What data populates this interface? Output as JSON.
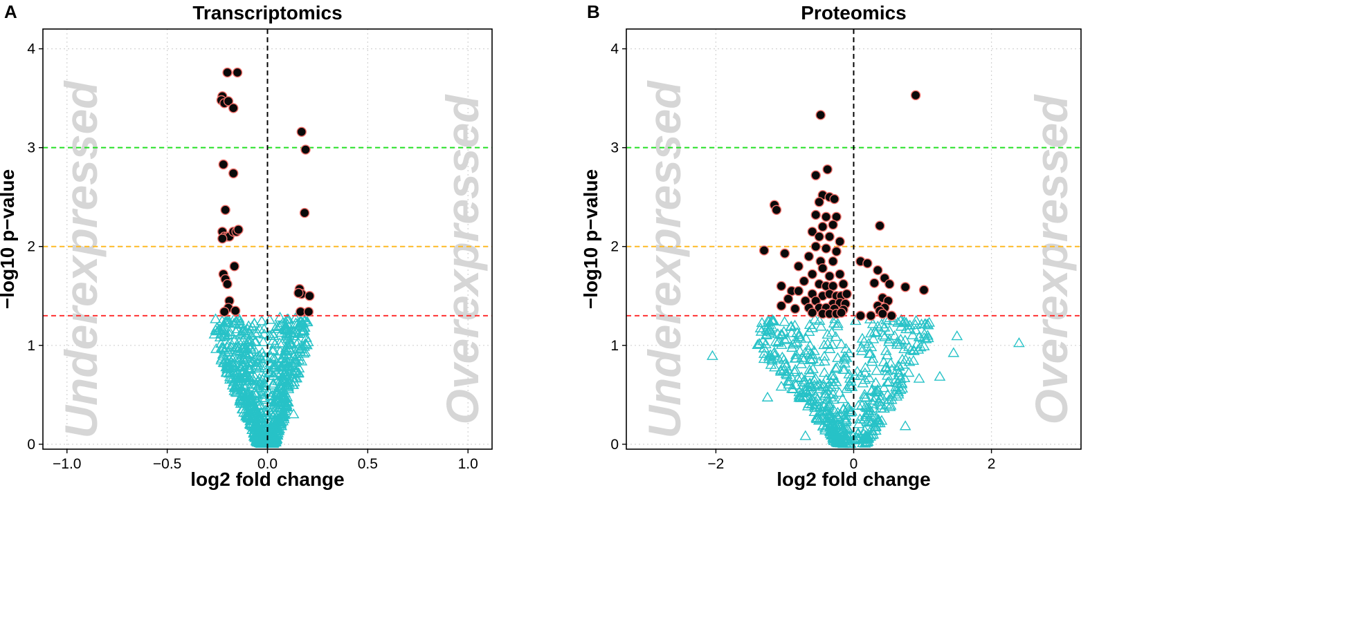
{
  "colors": {
    "significant_fill": "#0a0a0a",
    "significant_stroke": "#f2706a",
    "nonsignificant_stroke": "#27c2c7",
    "line_red": "#ff3030",
    "line_orange": "#ffba22",
    "line_green": "#22e022",
    "grid": "#d3d3d3"
  },
  "chart_data": [
    {
      "panel_label": "A",
      "type": "scatter",
      "title": "Transcriptomics",
      "xlabel": "log2 fold change",
      "ylabel": "−log10 p−value",
      "xlim": [
        -1.12,
        1.12
      ],
      "ylim": [
        -0.05,
        4.2
      ],
      "xticks": [
        -1.0,
        -0.5,
        0.0,
        0.5,
        1.0
      ],
      "xtick_labels": [
        "−1.0",
        "−0.5",
        "0.0",
        "0.5",
        "1.0"
      ],
      "yticks": [
        0,
        1,
        2,
        3,
        4
      ],
      "ytick_labels": [
        "0",
        "1",
        "2",
        "3",
        "4"
      ],
      "grid": true,
      "annotations": {
        "left": "Underexpressed",
        "right": "Overexpressed"
      },
      "thresholds": [
        {
          "y": 1.3,
          "color": "red"
        },
        {
          "y": 2.0,
          "color": "orange"
        },
        {
          "y": 3.0,
          "color": "green"
        }
      ],
      "vline_x": 0,
      "significant": [
        [
          -0.2,
          3.76
        ],
        [
          -0.15,
          3.76
        ],
        [
          -0.225,
          3.52
        ],
        [
          -0.23,
          3.48
        ],
        [
          -0.215,
          3.45
        ],
        [
          -0.195,
          3.47
        ],
        [
          -0.17,
          3.4
        ],
        [
          -0.22,
          2.83
        ],
        [
          -0.17,
          2.74
        ],
        [
          -0.21,
          2.37
        ],
        [
          -0.225,
          2.15
        ],
        [
          -0.215,
          2.1
        ],
        [
          -0.2,
          2.1
        ],
        [
          -0.19,
          2.1
        ],
        [
          -0.17,
          2.15
        ],
        [
          -0.155,
          2.15
        ],
        [
          -0.145,
          2.17
        ],
        [
          -0.225,
          2.08
        ],
        [
          -0.165,
          1.8
        ],
        [
          -0.22,
          1.72
        ],
        [
          -0.21,
          1.67
        ],
        [
          -0.2,
          1.62
        ],
        [
          -0.19,
          1.45
        ],
        [
          -0.195,
          1.38
        ],
        [
          -0.215,
          1.34
        ],
        [
          -0.16,
          1.35
        ],
        [
          0.17,
          3.16
        ],
        [
          0.19,
          2.98
        ],
        [
          0.185,
          2.34
        ],
        [
          0.16,
          1.57
        ],
        [
          0.17,
          1.52
        ],
        [
          0.155,
          1.53
        ],
        [
          0.21,
          1.5
        ],
        [
          0.165,
          1.34
        ],
        [
          0.205,
          1.34
        ]
      ],
      "nonsignificant_left": {
        "count": 420,
        "x_range": [
          -0.26,
          -0.01
        ]
      },
      "nonsignificant_right": {
        "count": 360,
        "x_range": [
          0.01,
          0.2
        ]
      },
      "nonsignificant_extra": [
        [
          -0.12,
          1.05
        ],
        [
          -0.1,
          1.0
        ],
        [
          -0.11,
          0.92
        ],
        [
          -0.13,
          0.9
        ],
        [
          -0.1,
          0.6
        ],
        [
          0.1,
          0.42
        ],
        [
          0.13,
          0.3
        ],
        [
          -0.05,
          0.22
        ],
        [
          0.06,
          0.18
        ]
      ]
    },
    {
      "panel_label": "B",
      "type": "scatter",
      "title": "Proteomics",
      "xlabel": "log2 fold change",
      "ylabel": "−log10 p−value",
      "xlim": [
        -3.3,
        3.3
      ],
      "ylim": [
        -0.05,
        4.2
      ],
      "xticks": [
        -2,
        0,
        2
      ],
      "xtick_labels": [
        "−2",
        "0",
        "2"
      ],
      "yticks": [
        0,
        1,
        2,
        3,
        4
      ],
      "ytick_labels": [
        "0",
        "1",
        "2",
        "3",
        "4"
      ],
      "grid": true,
      "annotations": {
        "left": "Underexpressed",
        "right": "Overexpressed"
      },
      "thresholds": [
        {
          "y": 1.3,
          "color": "red"
        },
        {
          "y": 2.0,
          "color": "orange"
        },
        {
          "y": 3.0,
          "color": "green"
        }
      ],
      "vline_x": 0,
      "significant": [
        [
          0.9,
          3.53
        ],
        [
          -0.48,
          3.33
        ],
        [
          -0.38,
          2.78
        ],
        [
          -0.55,
          2.72
        ],
        [
          -0.45,
          2.52
        ],
        [
          -0.35,
          2.5
        ],
        [
          -0.28,
          2.48
        ],
        [
          -0.5,
          2.45
        ],
        [
          -1.15,
          2.42
        ],
        [
          -1.12,
          2.37
        ],
        [
          -0.55,
          2.32
        ],
        [
          -0.4,
          2.3
        ],
        [
          -0.25,
          2.3
        ],
        [
          -0.45,
          2.2
        ],
        [
          -0.3,
          2.22
        ],
        [
          0.38,
          2.21
        ],
        [
          -0.6,
          2.15
        ],
        [
          -0.5,
          2.1
        ],
        [
          -0.35,
          2.1
        ],
        [
          -0.2,
          2.05
        ],
        [
          -0.55,
          2.0
        ],
        [
          -0.4,
          1.98
        ],
        [
          -0.25,
          1.95
        ],
        [
          -1.3,
          1.96
        ],
        [
          -1.0,
          1.93
        ],
        [
          -0.65,
          1.9
        ],
        [
          -0.48,
          1.85
        ],
        [
          -0.3,
          1.85
        ],
        [
          0.1,
          1.85
        ],
        [
          0.2,
          1.83
        ],
        [
          -0.8,
          1.8
        ],
        [
          -0.45,
          1.78
        ],
        [
          0.35,
          1.76
        ],
        [
          0.45,
          1.68
        ],
        [
          -0.6,
          1.72
        ],
        [
          -0.35,
          1.7
        ],
        [
          -0.2,
          1.72
        ],
        [
          0.3,
          1.63
        ],
        [
          0.52,
          1.62
        ],
        [
          -0.72,
          1.65
        ],
        [
          -0.5,
          1.62
        ],
        [
          -0.4,
          1.6
        ],
        [
          -0.3,
          1.6
        ],
        [
          -0.15,
          1.62
        ],
        [
          -1.05,
          1.6
        ],
        [
          0.75,
          1.59
        ],
        [
          1.02,
          1.56
        ],
        [
          -0.9,
          1.55
        ],
        [
          -0.8,
          1.55
        ],
        [
          -0.6,
          1.52
        ],
        [
          -0.45,
          1.5
        ],
        [
          -0.35,
          1.52
        ],
        [
          -0.25,
          1.5
        ],
        [
          -0.18,
          1.5
        ],
        [
          -0.1,
          1.52
        ],
        [
          0.42,
          1.48
        ],
        [
          0.5,
          1.45
        ],
        [
          -0.95,
          1.47
        ],
        [
          -0.7,
          1.45
        ],
        [
          -0.55,
          1.45
        ],
        [
          -0.3,
          1.42
        ],
        [
          -0.2,
          1.43
        ],
        [
          -0.12,
          1.42
        ],
        [
          0.35,
          1.4
        ],
        [
          0.45,
          1.38
        ],
        [
          -1.05,
          1.4
        ],
        [
          -0.85,
          1.37
        ],
        [
          -0.65,
          1.38
        ],
        [
          -0.5,
          1.38
        ],
        [
          -0.4,
          1.38
        ],
        [
          -0.28,
          1.37
        ],
        [
          -0.15,
          1.36
        ],
        [
          0.38,
          1.35
        ],
        [
          -0.6,
          1.33
        ],
        [
          -0.45,
          1.32
        ],
        [
          -0.35,
          1.32
        ],
        [
          -0.25,
          1.32
        ],
        [
          -0.18,
          1.33
        ],
        [
          0.1,
          1.3
        ],
        [
          0.25,
          1.3
        ],
        [
          0.55,
          1.3
        ],
        [
          0.42,
          1.32
        ]
      ],
      "nonsignificant_left": {
        "count": 340,
        "x_range": [
          -1.4,
          -0.01
        ]
      },
      "nonsignificant_right": {
        "count": 200,
        "x_range": [
          0.01,
          1.1
        ]
      },
      "nonsignificant_extra": [
        [
          -2.05,
          0.89
        ],
        [
          2.4,
          1.02
        ],
        [
          1.5,
          1.09
        ],
        [
          1.45,
          0.92
        ],
        [
          1.25,
          0.68
        ],
        [
          0.95,
          0.66
        ],
        [
          -1.25,
          0.47
        ],
        [
          -1.05,
          0.58
        ],
        [
          -0.7,
          0.08
        ],
        [
          -1.3,
          0.86
        ],
        [
          -1.2,
          0.8
        ],
        [
          0.75,
          0.18
        ],
        [
          0.9,
          1.15
        ],
        [
          0.95,
          1.08
        ],
        [
          -0.9,
          1.12
        ],
        [
          -1.0,
          1.05
        ],
        [
          0.65,
          0.5
        ],
        [
          0.8,
          0.72
        ]
      ]
    }
  ]
}
